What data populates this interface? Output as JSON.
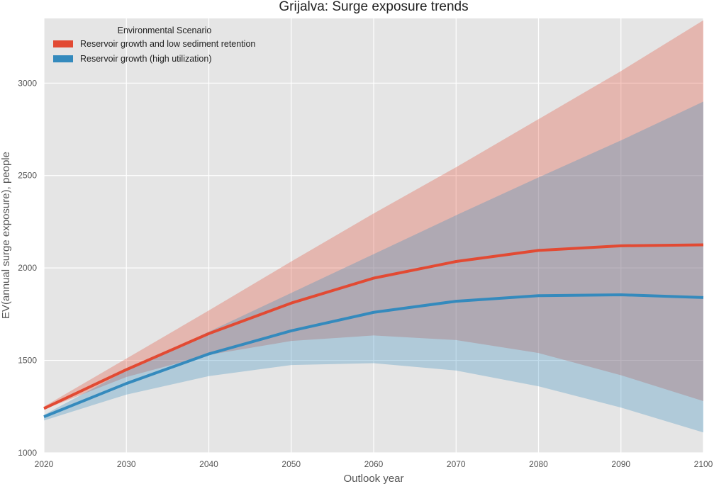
{
  "chart_data": {
    "type": "line",
    "title": "Grijalva: Surge exposure trends",
    "xlabel": "Outlook year",
    "ylabel": "EV(annual surge exposure), people",
    "xlim": [
      2020,
      2100
    ],
    "ylim": [
      1000,
      3350
    ],
    "xticks": [
      2020,
      2030,
      2040,
      2050,
      2060,
      2070,
      2080,
      2090,
      2100
    ],
    "yticks": [
      1000,
      1500,
      2000,
      2500,
      3000
    ],
    "grid": true,
    "legend": {
      "title": "Environmental Scenario",
      "position": "top-left"
    },
    "x": [
      2020,
      2030,
      2040,
      2050,
      2060,
      2070,
      2080,
      2090,
      2100
    ],
    "series": [
      {
        "name": "Reservoir growth and low sediment retention",
        "color": "#E24A33",
        "values": [
          1240,
          1450,
          1645,
          1810,
          1945,
          2035,
          2095,
          2120,
          2125
        ],
        "lower": [
          1235,
          1410,
          1530,
          1605,
          1635,
          1610,
          1540,
          1420,
          1280
        ],
        "upper": [
          1250,
          1510,
          1770,
          2035,
          2295,
          2545,
          2805,
          3065,
          3340
        ]
      },
      {
        "name": "Reservoir growth (high utilization)",
        "color": "#348ABD",
        "values": [
          1195,
          1375,
          1535,
          1660,
          1760,
          1820,
          1850,
          1855,
          1840
        ],
        "lower": [
          1175,
          1315,
          1415,
          1475,
          1485,
          1445,
          1360,
          1245,
          1110
        ],
        "upper": [
          1205,
          1445,
          1655,
          1865,
          2075,
          2285,
          2490,
          2690,
          2900
        ]
      }
    ]
  }
}
